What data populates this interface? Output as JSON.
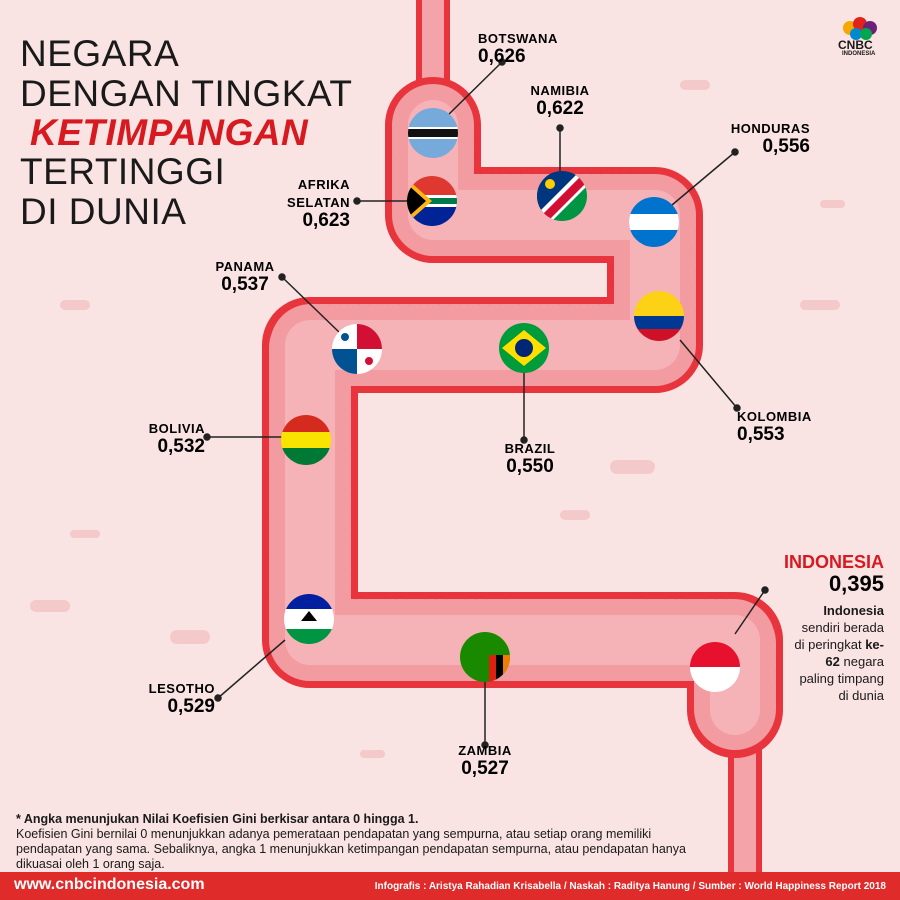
{
  "logo": {
    "name": "CNBC",
    "sub": "INDONESIA"
  },
  "title": {
    "line1": "NEGARA",
    "line2": "DENGAN TINGKAT",
    "line3": "KETIMPANGAN",
    "line4": "TERTINGGI",
    "line5": "DI DUNIA"
  },
  "countries": [
    {
      "name": "BOTSWANA",
      "value": "0,626"
    },
    {
      "name": "NAMIBIA",
      "value": "0,622"
    },
    {
      "name": "HONDURAS",
      "value": "0,556"
    },
    {
      "name": "AFRIKA SELATAN",
      "value": "0,623"
    },
    {
      "name": "PANAMA",
      "value": "0,537"
    },
    {
      "name": "BRAZIL",
      "value": "0,550"
    },
    {
      "name": "KOLOMBIA",
      "value": "0,553"
    },
    {
      "name": "BOLIVIA",
      "value": "0,532"
    },
    {
      "name": "LESOTHO",
      "value": "0,529"
    },
    {
      "name": "ZAMBIA",
      "value": "0,527"
    }
  ],
  "indonesia": {
    "name": "INDONESIA",
    "value": "0,395",
    "note": [
      "Indonesia",
      "sendiri berada di peringkat",
      "ke-62",
      "negara paling timpang di dunia"
    ]
  },
  "footnote": {
    "line1": "* Angka menunjukan Nilai Koefisien Gini berkisar antara 0 hingga 1.",
    "line2": "Koefisien Gini bernilai 0 menunjukkan adanya pemerataan pendapatan yang sempurna, atau setiap orang memiliki pendapatan yang sama. Sebaliknya, angka 1 menunjukkan ketimpangan pendapatan sempurna, atau pendapatan hanya dikuasai oleh 1 orang saja."
  },
  "footer": {
    "website": "www.cnbcindonesia.com",
    "credits": "Infografis : Aristya Rahadian Krisabella / Naskah : Raditya Hanung / Sumber : World Happiness Report 2018"
  }
}
